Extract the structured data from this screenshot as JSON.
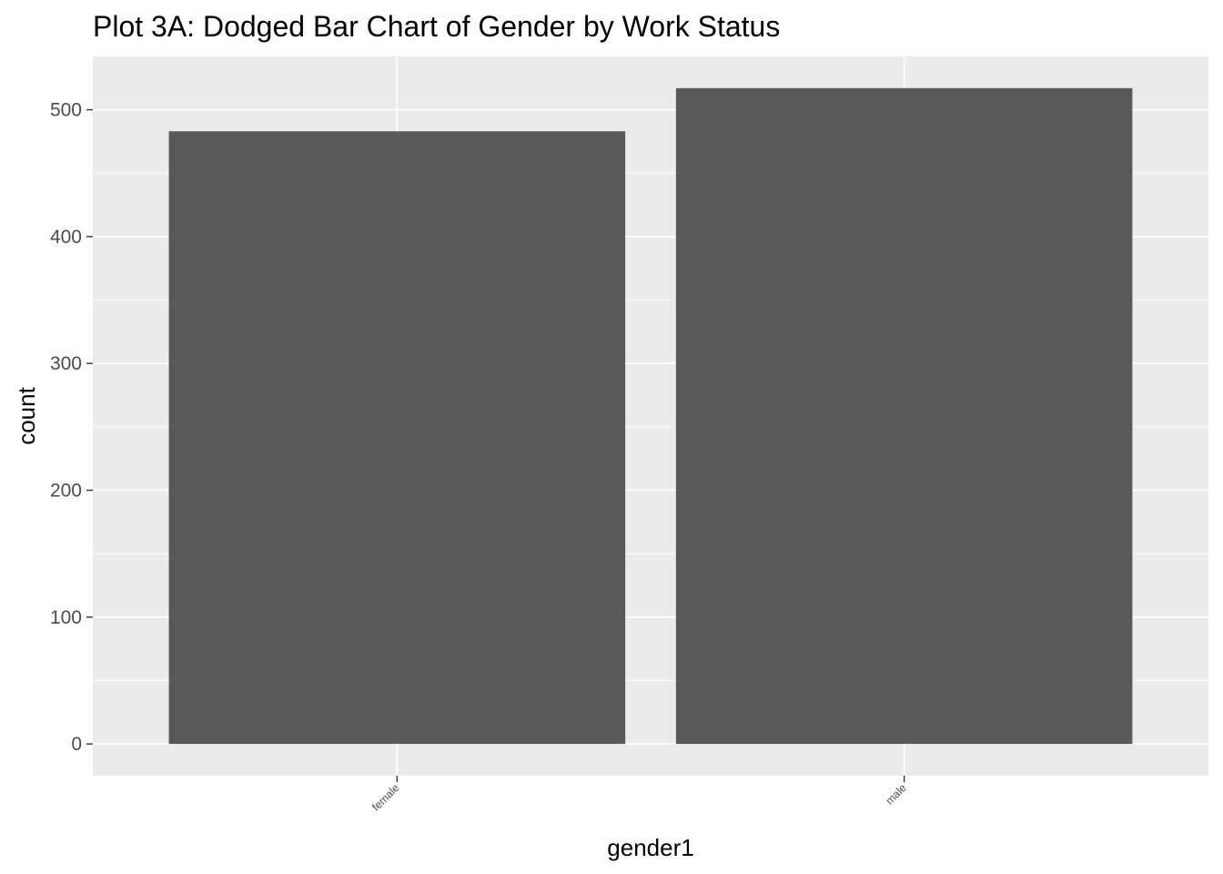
{
  "chart_data": {
    "type": "bar",
    "title": "Plot 3A: Dodged Bar Chart of Gender by Work Status",
    "xlabel": "gender1",
    "ylabel": "count",
    "categories": [
      "female",
      "male"
    ],
    "values": [
      483,
      517
    ],
    "ylim": [
      -25,
      542
    ],
    "y_ticks": [
      0,
      100,
      200,
      300,
      400,
      500
    ],
    "y_tick_labels": [
      "0",
      "100",
      "200",
      "300",
      "400",
      "500"
    ],
    "grid": true,
    "legend": "none",
    "bar_color": "#595959",
    "panel_color": "#ebebeb",
    "grid_color": "#ffffff"
  }
}
